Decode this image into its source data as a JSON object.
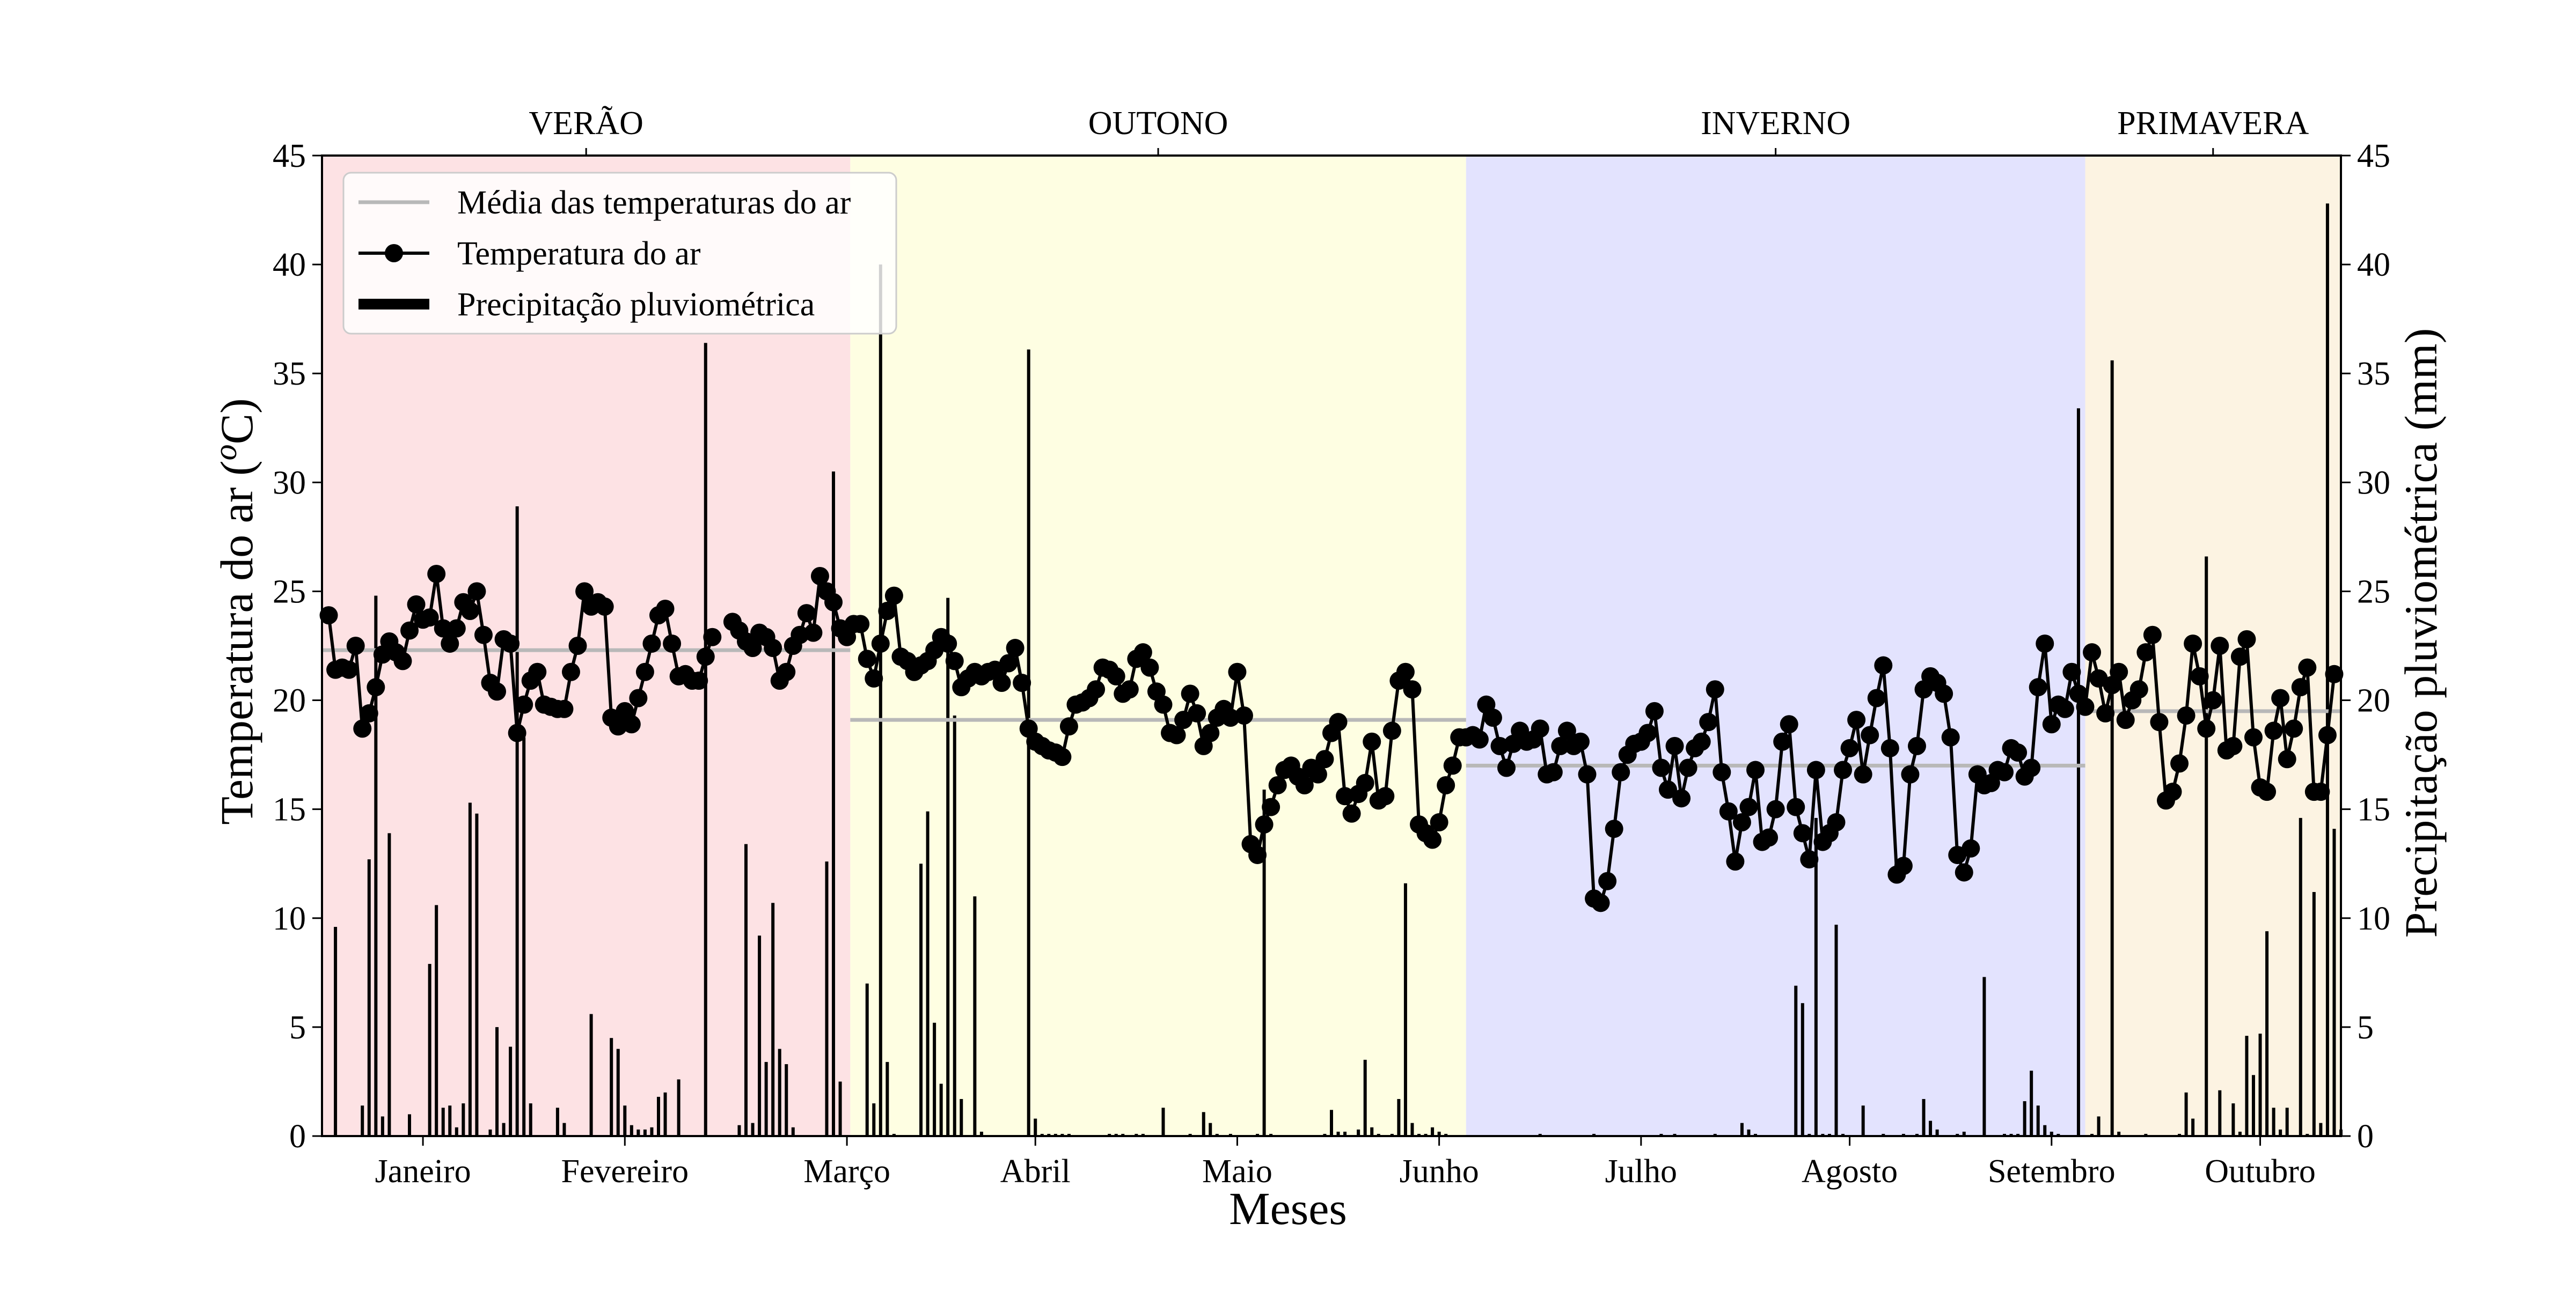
{
  "chart_data": {
    "type": "line+bar",
    "title": "",
    "xlabel": "Meses",
    "ylabel_left": "Temperatura do ar (°C)",
    "ylabel_left_parts": {
      "prefix": "Temperatura do ar (",
      "sup": "o",
      "unit": "C",
      "suffix": ")"
    },
    "ylabel_right": "Precipitação pluviométrica (mm)",
    "xlim_days": [
      1,
      301
    ],
    "ylim_left": [
      0,
      45
    ],
    "ylim_right": [
      0,
      45
    ],
    "y_ticks": [
      0,
      5,
      10,
      15,
      20,
      25,
      30,
      35,
      40,
      45
    ],
    "legend_position": "top-left",
    "grid": false,
    "month_ticks": [
      {
        "label": "Janeiro",
        "day": 16
      },
      {
        "label": "Fevereiro",
        "day": 46
      },
      {
        "label": "Março",
        "day": 79
      },
      {
        "label": "Abril",
        "day": 107
      },
      {
        "label": "Maio",
        "day": 137
      },
      {
        "label": "Junho",
        "day": 167
      },
      {
        "label": "Julho",
        "day": 197
      },
      {
        "label": "Agosto",
        "day": 228
      },
      {
        "label": "Setembro",
        "day": 258
      },
      {
        "label": "Outubro",
        "day": 289
      }
    ],
    "seasons": [
      {
        "name": "VERÃO",
        "start": 1,
        "end": 79.5,
        "color": "#fde2e4"
      },
      {
        "name": "OUTONO",
        "start": 79.5,
        "end": 171,
        "color": "#fefee2"
      },
      {
        "name": "INVERNO",
        "start": 171,
        "end": 263,
        "color": "#e3e3fe"
      },
      {
        "name": "PRIMAVERA",
        "start": 263,
        "end": 301,
        "color": "#fcf3e2"
      }
    ],
    "legend": [
      {
        "label": "Média das temperaturas do ar",
        "kind": "mean"
      },
      {
        "label": "Temperatura do ar",
        "kind": "temp"
      },
      {
        "label": "Precipitação pluviométrica",
        "kind": "precip"
      }
    ],
    "season_means": [
      {
        "start": 1,
        "end": 79.5,
        "value": 22.3
      },
      {
        "start": 79.5,
        "end": 171,
        "value": 19.1
      },
      {
        "start": 171,
        "end": 263,
        "value": 17.0
      },
      {
        "start": 263,
        "end": 301,
        "value": 19.5
      }
    ],
    "series": [
      {
        "name": "Temperatura do ar",
        "start_day": 2,
        "values": [
          23.9,
          21.4,
          21.5,
          21.4,
          22.5,
          18.7,
          19.4,
          20.6,
          22.1,
          22.7,
          22.2,
          21.8,
          23.2,
          24.4,
          23.7,
          23.8,
          25.8,
          23.3,
          22.6,
          23.3,
          24.5,
          24.1,
          25.0,
          23.0,
          20.8,
          20.4,
          22.8,
          22.6,
          18.5,
          19.8,
          20.9,
          21.3,
          19.8,
          19.7,
          19.6,
          19.6,
          21.3,
          22.5,
          25.0,
          24.3,
          24.5,
          24.3,
          19.2,
          18.8,
          19.5,
          18.9,
          20.1,
          21.3,
          22.6,
          23.9,
          24.2,
          22.6,
          21.1,
          21.2,
          20.9,
          20.9,
          22.0,
          22.9,
          null,
          null,
          23.6,
          23.2,
          22.7,
          22.4,
          23.1,
          22.9,
          22.4,
          20.9,
          21.3,
          22.5,
          23.0,
          24.0,
          23.1,
          25.7,
          25.0,
          24.5,
          23.3,
          22.9,
          23.5,
          23.5,
          21.9,
          21.0,
          22.6,
          24.1,
          24.8,
          22.0,
          21.8,
          21.3,
          21.6,
          21.8,
          22.3,
          22.9,
          22.6,
          21.8,
          20.6,
          21.0,
          21.3,
          21.1,
          21.3,
          21.4,
          20.8,
          21.7,
          22.4,
          20.8,
          18.7,
          18.1,
          17.9,
          17.7,
          17.6,
          17.4,
          18.8,
          19.8,
          19.9,
          20.1,
          20.5,
          21.5,
          21.4,
          21.1,
          20.3,
          20.5,
          21.9,
          22.2,
          21.5,
          20.4,
          19.8,
          18.5,
          18.4,
          19.1,
          20.3,
          19.4,
          17.9,
          18.5,
          19.2,
          19.6,
          19.2,
          21.3,
          19.3,
          13.4,
          12.9,
          14.3,
          15.1,
          16.1,
          16.8,
          17.0,
          16.5,
          16.1,
          16.9,
          16.6,
          17.3,
          18.5,
          19.0,
          15.6,
          14.8,
          15.7,
          16.2,
          18.1,
          15.4,
          15.6,
          18.6,
          20.9,
          21.3,
          20.5,
          14.3,
          13.9,
          13.6,
          14.4,
          16.1,
          17.0,
          18.3,
          18.3,
          18.4,
          18.2,
          19.8,
          19.2,
          17.9,
          16.9,
          18.0,
          18.6,
          18.1,
          18.2,
          18.7,
          16.6,
          16.7,
          17.9,
          18.6,
          17.9,
          18.1,
          16.6,
          10.9,
          10.7,
          11.7,
          14.1,
          16.7,
          17.5,
          18.0,
          18.1,
          18.5,
          19.5,
          16.9,
          15.9,
          17.9,
          15.5,
          16.9,
          17.8,
          18.1,
          19.0,
          20.5,
          16.7,
          14.9,
          12.6,
          14.4,
          15.1,
          16.8,
          13.5,
          13.7,
          15.0,
          18.1,
          18.9,
          15.1,
          13.9,
          12.7,
          16.8,
          13.5,
          13.9,
          14.4,
          16.8,
          17.8,
          19.1,
          16.6,
          18.4,
          20.1,
          21.6,
          17.8,
          12.0,
          12.4,
          16.6,
          17.9,
          20.5,
          21.1,
          20.8,
          20.3,
          18.3,
          12.9,
          12.1,
          13.2,
          16.6,
          16.1,
          16.2,
          16.8,
          16.7,
          17.8,
          17.6,
          16.5,
          16.9,
          20.6,
          22.6,
          18.9,
          19.8,
          19.6,
          21.3,
          20.3,
          19.7,
          22.2,
          21.0,
          19.4,
          20.7,
          21.3,
          19.1,
          20.0,
          20.5,
          22.2,
          23.0,
          19.0,
          15.4,
          15.8,
          17.1,
          19.3,
          22.6,
          21.1,
          18.7,
          20.0,
          22.5,
          17.7,
          17.9,
          22.0,
          22.8,
          18.3,
          16.0,
          15.8,
          18.6,
          20.1,
          17.3,
          18.7,
          20.6,
          21.5,
          15.8,
          15.8,
          18.4,
          21.2
        ]
      },
      {
        "name": "Precipitação pluviométrica",
        "bars": [
          [
            3,
            9.6
          ],
          [
            7,
            1.4
          ],
          [
            8,
            12.7
          ],
          [
            9,
            24.8
          ],
          [
            10,
            0.9
          ],
          [
            11,
            13.9
          ],
          [
            14,
            1.0
          ],
          [
            17,
            7.9
          ],
          [
            18,
            10.6
          ],
          [
            19,
            1.3
          ],
          [
            20,
            1.4
          ],
          [
            21,
            0.4
          ],
          [
            22,
            1.5
          ],
          [
            23,
            15.3
          ],
          [
            24,
            14.8
          ],
          [
            26,
            0.3
          ],
          [
            27,
            5.0
          ],
          [
            28,
            0.6
          ],
          [
            29,
            4.1
          ],
          [
            30,
            28.9
          ],
          [
            31,
            18.3
          ],
          [
            32,
            1.5
          ],
          [
            36,
            1.3
          ],
          [
            37,
            0.6
          ],
          [
            41,
            5.6
          ],
          [
            44,
            4.5
          ],
          [
            45,
            4.0
          ],
          [
            46,
            1.4
          ],
          [
            47,
            0.5
          ],
          [
            48,
            0.3
          ],
          [
            49,
            0.3
          ],
          [
            50,
            0.4
          ],
          [
            51,
            1.8
          ],
          [
            52,
            2.0
          ],
          [
            54,
            2.6
          ],
          [
            58,
            36.4
          ],
          [
            63,
            0.5
          ],
          [
            64,
            13.4
          ],
          [
            65,
            0.6
          ],
          [
            66,
            9.2
          ],
          [
            67,
            3.4
          ],
          [
            68,
            10.7
          ],
          [
            69,
            4.0
          ],
          [
            70,
            3.3
          ],
          [
            71,
            0.4
          ],
          [
            76,
            12.6
          ],
          [
            77,
            30.5
          ],
          [
            78,
            2.5
          ],
          [
            82,
            7.0
          ],
          [
            83,
            1.5
          ],
          [
            84,
            40.0
          ],
          [
            85,
            3.4
          ],
          [
            86,
            0.1
          ],
          [
            90,
            12.5
          ],
          [
            91,
            14.9
          ],
          [
            92,
            5.2
          ],
          [
            93,
            2.4
          ],
          [
            94,
            24.7
          ],
          [
            95,
            19.3
          ],
          [
            96,
            1.7
          ],
          [
            98,
            11.0
          ],
          [
            99,
            0.2
          ],
          [
            106,
            36.1
          ],
          [
            107,
            0.8
          ],
          [
            108,
            0.1
          ],
          [
            109,
            0.1
          ],
          [
            110,
            0.1
          ],
          [
            111,
            0.1
          ],
          [
            112,
            0.1
          ],
          [
            118,
            0.1
          ],
          [
            119,
            0.1
          ],
          [
            120,
            0.1
          ],
          [
            122,
            0.1
          ],
          [
            123,
            0.1
          ],
          [
            126,
            1.3
          ],
          [
            130,
            0.1
          ],
          [
            132,
            1.1
          ],
          [
            133,
            0.6
          ],
          [
            134,
            0.1
          ],
          [
            136,
            0.1
          ],
          [
            140,
            0.1
          ],
          [
            141,
            15.9
          ],
          [
            142,
            0.1
          ],
          [
            150,
            0.1
          ],
          [
            151,
            1.2
          ],
          [
            152,
            0.2
          ],
          [
            153,
            0.2
          ],
          [
            155,
            0.3
          ],
          [
            156,
            3.5
          ],
          [
            157,
            0.4
          ],
          [
            158,
            0.1
          ],
          [
            160,
            0.1
          ],
          [
            161,
            1.7
          ],
          [
            162,
            11.6
          ],
          [
            163,
            0.6
          ],
          [
            164,
            0.1
          ],
          [
            165,
            0.1
          ],
          [
            166,
            0.4
          ],
          [
            167,
            0.2
          ],
          [
            168,
            0.1
          ],
          [
            182,
            0.1
          ],
          [
            190,
            0.1
          ],
          [
            200,
            0.1
          ],
          [
            202,
            0.1
          ],
          [
            208,
            0.1
          ],
          [
            212,
            0.6
          ],
          [
            213,
            0.3
          ],
          [
            214,
            0.1
          ],
          [
            220,
            6.9
          ],
          [
            221,
            6.1
          ],
          [
            222,
            0.1
          ],
          [
            223,
            14.6
          ],
          [
            224,
            0.1
          ],
          [
            225,
            0.1
          ],
          [
            226,
            9.7
          ],
          [
            227,
            0.1
          ],
          [
            230,
            1.4
          ],
          [
            233,
            0.1
          ],
          [
            236,
            0.1
          ],
          [
            238,
            0.1
          ],
          [
            239,
            1.7
          ],
          [
            240,
            0.7
          ],
          [
            241,
            0.3
          ],
          [
            244,
            0.1
          ],
          [
            245,
            0.2
          ],
          [
            248,
            7.3
          ],
          [
            251,
            0.1
          ],
          [
            252,
            0.1
          ],
          [
            253,
            0.1
          ],
          [
            254,
            1.6
          ],
          [
            255,
            3.0
          ],
          [
            256,
            1.4
          ],
          [
            257,
            0.5
          ],
          [
            258,
            0.2
          ],
          [
            259,
            0.1
          ],
          [
            262,
            33.4
          ],
          [
            264,
            0.1
          ],
          [
            265,
            0.9
          ],
          [
            267,
            35.6
          ],
          [
            268,
            0.2
          ],
          [
            272,
            0.1
          ],
          [
            277,
            0.1
          ],
          [
            278,
            2.0
          ],
          [
            279,
            0.8
          ],
          [
            281,
            26.6
          ],
          [
            283,
            2.1
          ],
          [
            285,
            1.5
          ],
          [
            286,
            0.2
          ],
          [
            287,
            4.6
          ],
          [
            288,
            2.8
          ],
          [
            289,
            4.7
          ],
          [
            290,
            9.4
          ],
          [
            291,
            1.3
          ],
          [
            292,
            0.3
          ],
          [
            293,
            1.3
          ],
          [
            295,
            14.6
          ],
          [
            296,
            0.1
          ],
          [
            297,
            11.2
          ],
          [
            298,
            0.6
          ],
          [
            299,
            42.8
          ],
          [
            300,
            14.1
          ],
          [
            301,
            0.3
          ]
        ]
      }
    ]
  }
}
